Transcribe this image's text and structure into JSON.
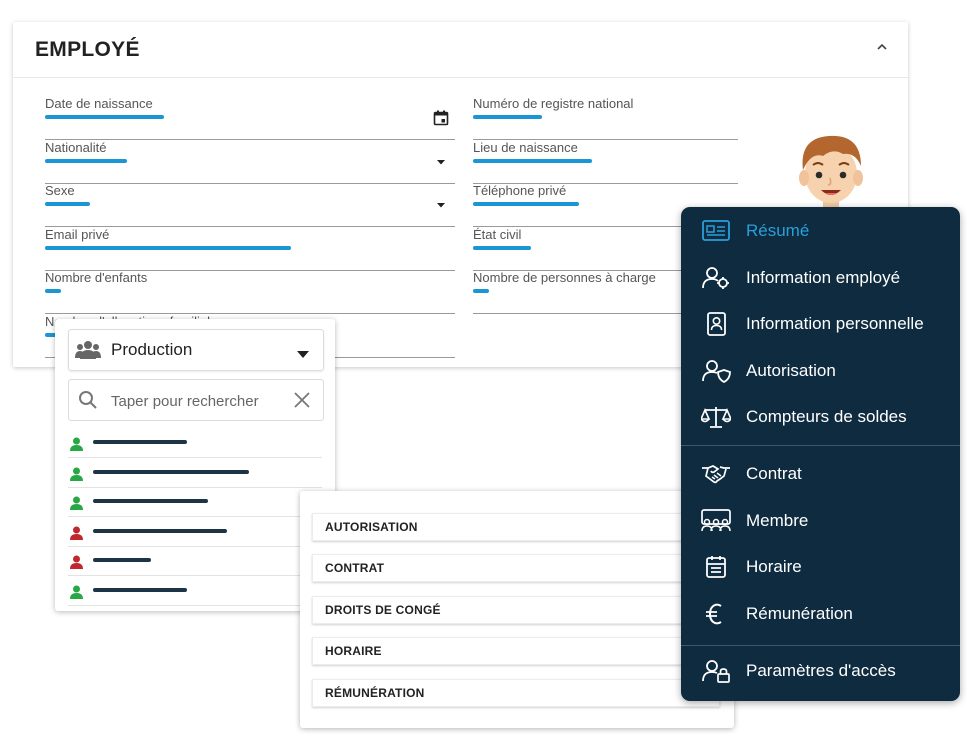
{
  "employee_card": {
    "title": "EMPLOYÉ",
    "left_fields": [
      {
        "label": "Date de naissance",
        "value_fill": 0.29,
        "trailing": "calendar-icon"
      },
      {
        "label": "Nationalité",
        "value_fill": 0.2,
        "trailing": "dropdown-arrow-icon"
      },
      {
        "label": "Sexe",
        "value_fill": 0.11,
        "trailing": "dropdown-arrow-icon"
      },
      {
        "label": "Email privé",
        "value_fill": 0.6
      },
      {
        "label": "Nombre d'enfants",
        "value_fill": 0.04
      },
      {
        "label": "Nombre d'allocations familiales",
        "value_fill": 0.06
      }
    ],
    "right_fields": [
      {
        "label": "Numéro de registre national",
        "value_fill": 0.26
      },
      {
        "label": "Lieu de naissance",
        "value_fill": 0.45
      },
      {
        "label": "Téléphone privé",
        "value_fill": 0.4
      },
      {
        "label": "État civil",
        "value_fill": 0.22
      },
      {
        "label": "Nombre de personnes à charge",
        "value_fill": 0.06
      }
    ]
  },
  "team_panel": {
    "selected_team": "Production",
    "team_icon": "group-icon",
    "search_placeholder": "Taper pour rechercher",
    "employees": [
      {
        "status": "green",
        "name_fill": 0.39
      },
      {
        "status": "green",
        "name_fill": 0.65
      },
      {
        "status": "green",
        "name_fill": 0.48
      },
      {
        "status": "red",
        "name_fill": 0.56
      },
      {
        "status": "red",
        "name_fill": 0.24
      },
      {
        "status": "green",
        "name_fill": 0.39
      }
    ]
  },
  "sections_panel": {
    "items": [
      "AUTORISATION",
      "CONTRAT",
      "DROITS DE CONGÉ",
      "HORAIRE",
      "RÉMUNÉRATION"
    ]
  },
  "nav_menu": {
    "groups": [
      [
        {
          "label": "Résumé",
          "icon": "id-card-icon",
          "active": true
        },
        {
          "label": "Information employé",
          "icon": "user-gear-icon"
        },
        {
          "label": "Information personnelle",
          "icon": "contact-card-icon"
        },
        {
          "label": "Autorisation",
          "icon": "user-shield-icon"
        },
        {
          "label": "Compteurs de soldes",
          "icon": "balance-scale-icon"
        }
      ],
      [
        {
          "label": "Contrat",
          "icon": "handshake-icon"
        },
        {
          "label": "Membre",
          "icon": "team-members-icon"
        },
        {
          "label": "Horaire",
          "icon": "calendar-icon"
        },
        {
          "label": "Rémunération",
          "icon": "euro-icon"
        }
      ],
      [
        {
          "label": "Paramètres d'accès",
          "icon": "user-lock-icon"
        }
      ]
    ]
  },
  "colors": {
    "accent": "#1a96d4",
    "nav_background": "#0e2b3f",
    "nav_active": "#2a9fdc",
    "status_green": "#27a844",
    "status_red": "#c0282d",
    "name_placeholder": "#1d3446"
  }
}
